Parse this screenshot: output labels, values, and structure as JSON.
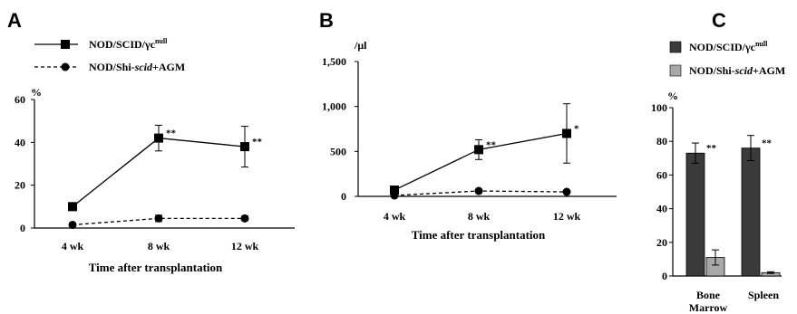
{
  "chart_data": [
    {
      "panel": "A",
      "type": "line",
      "unit_label": "%",
      "xlabel": "Time after transplantation",
      "categories": [
        "4 wk",
        "8 wk",
        "12 wk"
      ],
      "yticks": [
        "0",
        "20",
        "40",
        "60"
      ],
      "ylim": [
        0,
        60
      ],
      "legend_position": "top-left",
      "legend": [
        {
          "label_parts": [
            "NOD/SCID/γc",
            "null",
            ""
          ],
          "label_style": [
            "normal",
            "sup",
            "normal"
          ]
        },
        {
          "label_parts": [
            "NOD/Shi-",
            "scid",
            "+AGM"
          ],
          "label_style": [
            "normal",
            "italic",
            "normal"
          ]
        }
      ],
      "series": [
        {
          "name": "NOD/SCID/γcnull",
          "marker": "square",
          "line": "solid",
          "values": [
            10,
            42,
            38
          ],
          "errors": [
            0,
            6,
            9.5
          ],
          "sig": [
            "",
            "**",
            "**"
          ]
        },
        {
          "name": "NOD/Shi-scid+AGM",
          "marker": "circle",
          "line": "dashed",
          "values": [
            1.5,
            4.5,
            4.5
          ],
          "errors": [
            0,
            1.5,
            1
          ],
          "sig": [
            "",
            "",
            ""
          ]
        }
      ]
    },
    {
      "panel": "B",
      "type": "line",
      "unit_label": "/μl",
      "xlabel": "Time after transplantation",
      "categories": [
        "4 wk",
        "8 wk",
        "12 wk"
      ],
      "yticks": [
        "0",
        "500",
        "1,000",
        "1,500"
      ],
      "ylim": [
        0,
        1500
      ],
      "series": [
        {
          "name": "NOD/SCID/γcnull",
          "marker": "square",
          "line": "solid",
          "values": [
            70,
            520,
            700
          ],
          "errors": [
            0,
            110,
            330
          ],
          "sig": [
            "",
            "**",
            "*"
          ]
        },
        {
          "name": "NOD/Shi-scid+AGM",
          "marker": "circle",
          "line": "dashed",
          "values": [
            10,
            60,
            50
          ],
          "errors": [
            0,
            15,
            10
          ],
          "sig": [
            "",
            "",
            ""
          ]
        }
      ]
    },
    {
      "panel": "C",
      "type": "bar",
      "unit_label": "%",
      "categories": [
        [
          "Bone",
          "Marrow"
        ],
        [
          "Spleen"
        ]
      ],
      "yticks": [
        "0",
        "20",
        "40",
        "60",
        "80",
        "100"
      ],
      "ylim": [
        0,
        100
      ],
      "legend_position": "top",
      "legend": [
        {
          "label_parts": [
            "NOD/SCID/γc",
            "null",
            ""
          ],
          "label_style": [
            "normal",
            "sup",
            "normal"
          ]
        },
        {
          "label_parts": [
            "NOD/Shi-",
            "scid",
            "+AGM"
          ],
          "label_style": [
            "normal",
            "italic",
            "normal"
          ]
        }
      ],
      "series": [
        {
          "name": "NOD/SCID/γcnull",
          "color": "#3a3a3a",
          "values": [
            73,
            76
          ],
          "errors": [
            6,
            7.5
          ],
          "sig": [
            "**",
            "**"
          ]
        },
        {
          "name": "NOD/Shi-scid+AGM",
          "color": "#a8a8a8",
          "values": [
            11,
            2
          ],
          "errors": [
            4.5,
            0.5
          ],
          "sig": [
            "",
            ""
          ]
        }
      ]
    }
  ]
}
